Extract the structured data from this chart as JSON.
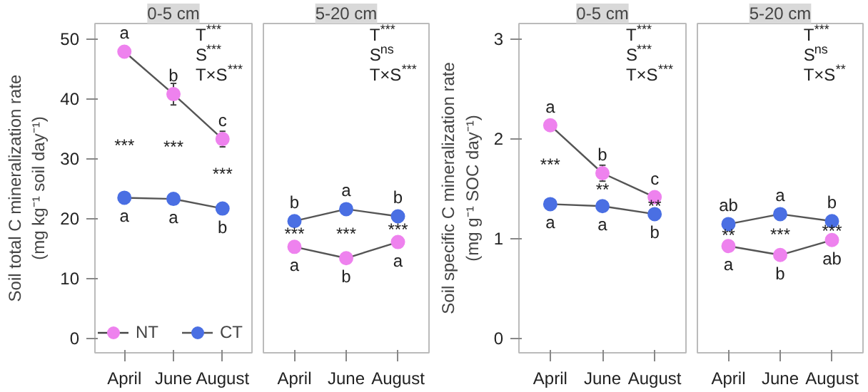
{
  "chart_data": [
    {
      "type": "line",
      "title": "0-5 cm",
      "ylabel": "Soil total C mineralization rate\n(mg kg⁻¹ soil day⁻¹)",
      "categories": [
        "April",
        "June",
        "August"
      ],
      "ylim": [
        -2.5,
        52.5
      ],
      "yticks": [
        0,
        10,
        20,
        30,
        40,
        50
      ],
      "legend": "bottom",
      "marker": "circle",
      "grid": false,
      "series": [
        {
          "name": "NT",
          "color": "#ee82ee",
          "values": [
            47.8,
            40.7,
            33.2
          ],
          "errors": [
            null,
            1.8,
            1.3
          ],
          "value_labels": [
            "a",
            "b",
            "c"
          ]
        },
        {
          "name": "CT",
          "color": "#4a6fe3",
          "values": [
            23.4,
            23.2,
            21.6
          ],
          "value_labels": [
            "a",
            "a",
            "b"
          ]
        }
      ],
      "annotations": [
        {
          "text": "***",
          "x": "April",
          "y": 23.4
        },
        {
          "text": "***",
          "x": "June",
          "y": 23.2
        },
        {
          "text": "***",
          "x": "August",
          "y": 21.6
        },
        "T$^{***}$",
        "S$^{***}$",
        "T×S$^{***}$"
      ]
    },
    {
      "type": "line",
      "title": "5-20 cm",
      "categories": [
        "April",
        "June",
        "August"
      ],
      "ylim": [
        -2.5,
        52.5
      ],
      "tick_labels": "x",
      "marker": "circle",
      "grid": false,
      "series": [
        {
          "color": "#ee82ee",
          "values": [
            15.2,
            13.3,
            16.0
          ],
          "value_labels": [
            "a",
            "b",
            "a"
          ]
        },
        {
          "color": "#4a6fe3",
          "values": [
            19.5,
            21.5,
            20.3
          ],
          "value_labels": [
            "b",
            "a",
            "b"
          ]
        }
      ],
      "annotations": [
        {
          "text": "***",
          "x": "April",
          "y": 15.2
        },
        {
          "text": "***",
          "x": "June",
          "y": 13.3
        },
        {
          "text": "***",
          "x": "August",
          "y": 16.0
        },
        "T$^{***}$",
        "S$^{ns}$",
        "T×S$^{***}$"
      ]
    },
    {
      "type": "line",
      "title": "0-5 cm",
      "ylabel": "Soil specific C mineralization rate\n(mg g⁻¹ SOC day⁻¹)",
      "categories": [
        "April",
        "June",
        "August"
      ],
      "ylim": [
        -0.15,
        3.15
      ],
      "yticks": [
        0,
        1,
        2,
        3
      ],
      "marker": "circle",
      "grid": false,
      "series": [
        {
          "color": "#ee82ee",
          "values": [
            2.13,
            1.65,
            1.41
          ],
          "errors": [
            null,
            0.08,
            null
          ],
          "value_labels": [
            "a",
            "b",
            "c"
          ]
        },
        {
          "color": "#4a6fe3",
          "values": [
            1.34,
            1.32,
            1.24
          ],
          "value_labels": [
            "a",
            "a",
            "b"
          ]
        }
      ],
      "annotations": [
        {
          "text": "***",
          "x": "April",
          "y": 1.34
        },
        {
          "text": "**",
          "x": "June",
          "y": 1.32
        },
        {
          "text": "**",
          "x": "August",
          "y": 1.24
        },
        "T$^{***}$",
        "S$^{***}$",
        "T×S$^{***}$"
      ]
    },
    {
      "type": "line",
      "title": "5-20 cm",
      "categories": [
        "April",
        "June",
        "August"
      ],
      "ylim": [
        -0.15,
        3.15
      ],
      "tick_labels": "x",
      "marker": "circle",
      "grid": false,
      "series": [
        {
          "color": "#ee82ee",
          "values": [
            0.92,
            0.83,
            0.98
          ],
          "value_labels": [
            "a",
            "b",
            "ab"
          ]
        },
        {
          "color": "#4a6fe3",
          "values": [
            1.14,
            1.24,
            1.17
          ],
          "value_labels": [
            "ab",
            "a",
            "b"
          ]
        }
      ],
      "annotations": [
        {
          "text": "**",
          "x": "April",
          "y": 0.92
        },
        {
          "text": "***",
          "x": "June",
          "y": 0.83
        },
        {
          "text": "***",
          "x": "August",
          "y": 0.98
        },
        "T$^{***}$",
        "S$^{ns}$",
        "T×S$^{**}$"
      ]
    }
  ]
}
